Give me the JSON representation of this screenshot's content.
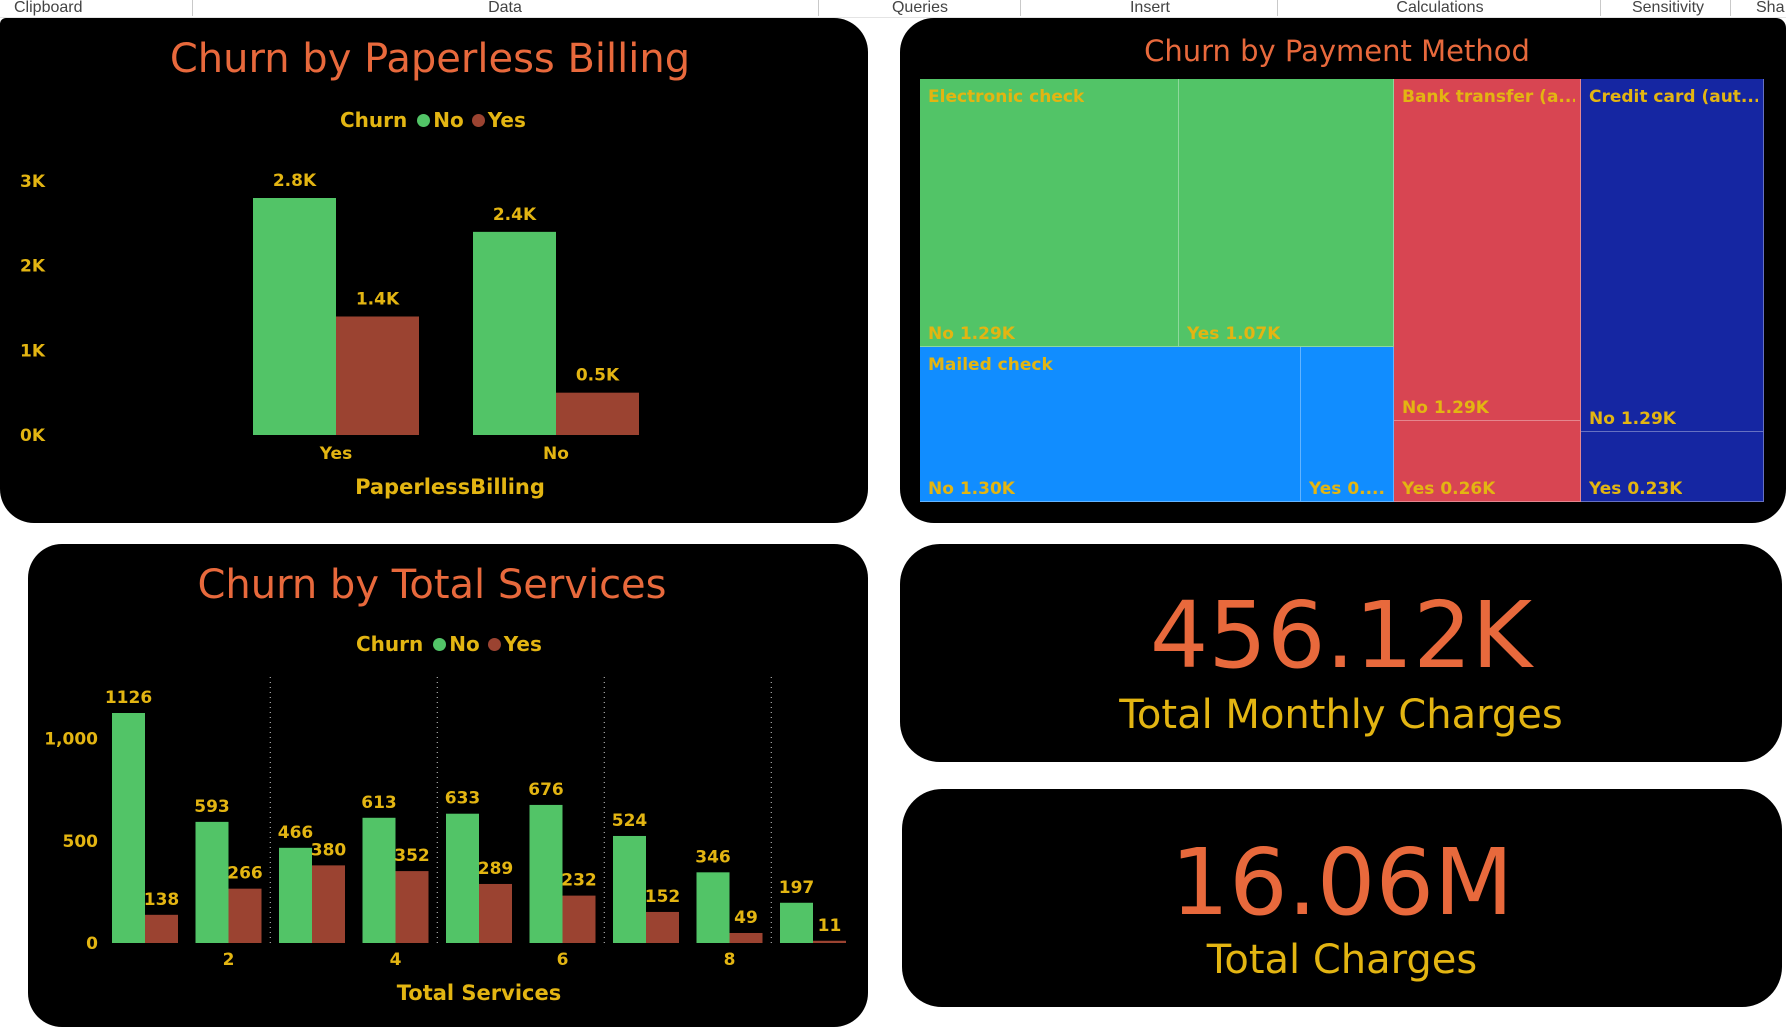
{
  "ribbon": {
    "tabs": [
      "Clipboard",
      "Data",
      "Queries",
      "Insert",
      "Calculations",
      "Sensitivity",
      "Sha"
    ]
  },
  "colors": {
    "no": "#52c467",
    "yes": "#9b4331",
    "title": "#e8693c",
    "label": "#e3b512",
    "panel_bg": "#000000",
    "tm_electronic": "#52c467",
    "tm_mailed": "#118dff",
    "tm_bank": "#d84552",
    "tm_credit": "#1526a2"
  },
  "paperless": {
    "title": "Churn by Paperless Billing",
    "legend": {
      "title": "Churn",
      "no": "No",
      "yes": "Yes"
    },
    "chart_data": {
      "type": "bar",
      "title": "Churn by Paperless Billing",
      "xlabel": "PaperlessBilling",
      "ylabel": "",
      "categories": [
        "Yes",
        "No"
      ],
      "series": [
        {
          "name": "No",
          "values": [
            2.8,
            2.4
          ],
          "labels": [
            "2.8K",
            "2.4K"
          ]
        },
        {
          "name": "Yes",
          "values": [
            1.4,
            0.5
          ],
          "labels": [
            "1.4K",
            "0.5K"
          ]
        }
      ],
      "ylim": [
        0,
        3.2
      ],
      "yticks": [
        0,
        1,
        2,
        3
      ],
      "ytick_labels": [
        "0K",
        "1K",
        "2K",
        "3K"
      ],
      "legend_position": "top-center",
      "grid": false
    }
  },
  "payment": {
    "title": "Churn by Payment Method",
    "chart_data": {
      "type": "treemap",
      "title": "Churn by Payment Method",
      "groups": [
        {
          "name": "Electronic check",
          "label": "Electronic check",
          "color_key": "tm_electronic",
          "items": [
            {
              "label": "No 1.29K",
              "value": 1.29
            },
            {
              "label": "Yes 1.07K",
              "value": 1.07
            }
          ]
        },
        {
          "name": "Mailed check",
          "label": "Mailed check",
          "color_key": "tm_mailed",
          "items": [
            {
              "label": "No 1.30K",
              "value": 1.3
            },
            {
              "label": "Yes 0....",
              "value": 0.31
            }
          ]
        },
        {
          "name": "Bank transfer (automatic)",
          "label": "Bank transfer (a...",
          "color_key": "tm_bank",
          "items": [
            {
              "label": "No 1.29K",
              "value": 1.29
            },
            {
              "label": "Yes 0.26K",
              "value": 0.26
            }
          ]
        },
        {
          "name": "Credit card (automatic)",
          "label": "Credit card (aut...",
          "color_key": "tm_credit",
          "items": [
            {
              "label": "No 1.29K",
              "value": 1.29
            },
            {
              "label": "Yes 0.23K",
              "value": 0.23
            }
          ]
        }
      ]
    }
  },
  "services": {
    "title": "Churn by Total Services",
    "legend": {
      "title": "Churn",
      "no": "No",
      "yes": "Yes"
    },
    "chart_data": {
      "type": "bar",
      "title": "Churn by Total Services",
      "xlabel": "Total Services",
      "ylabel": "",
      "x": [
        1,
        2,
        3,
        4,
        5,
        6,
        7,
        8,
        9
      ],
      "series": [
        {
          "name": "No",
          "values": [
            1126,
            593,
            466,
            613,
            633,
            676,
            524,
            346,
            197
          ]
        },
        {
          "name": "Yes",
          "values": [
            138,
            266,
            380,
            352,
            289,
            232,
            152,
            49,
            11
          ]
        }
      ],
      "ylim": [
        0,
        1200
      ],
      "yticks": [
        0,
        500,
        1000
      ],
      "ytick_labels": [
        "0",
        "500",
        "1,000"
      ],
      "xticks": [
        2,
        4,
        6,
        8
      ],
      "xtick_labels": [
        "2",
        "4",
        "6",
        "8"
      ],
      "legend_position": "top-center",
      "grid": "vertical-dotted"
    }
  },
  "kpi_monthly": {
    "value": "456.12K",
    "label": "Total Monthly Charges"
  },
  "kpi_total": {
    "value": "16.06M",
    "label": "Total Charges"
  }
}
